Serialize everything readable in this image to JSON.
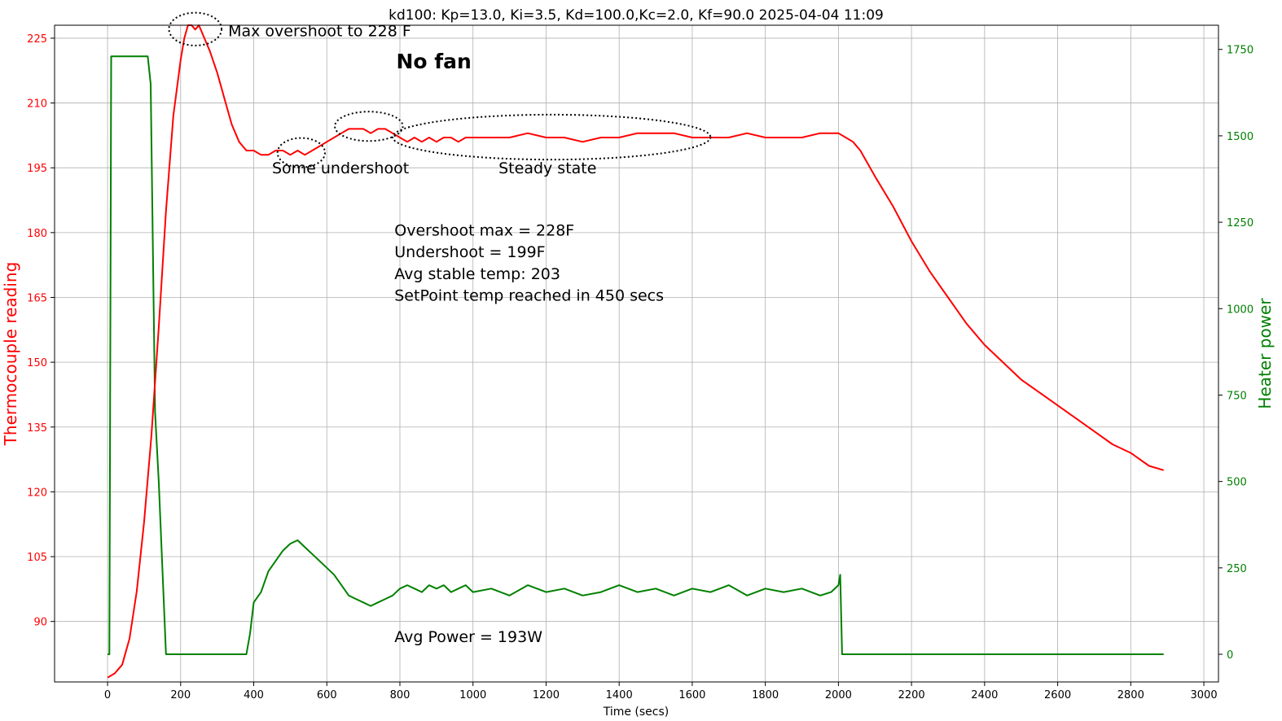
{
  "chart_data": {
    "type": "line",
    "title": "kd100: Kp=13.0, Ki=3.5, Kd=100.0,Kc=2.0, Kf=90.0  2025-04-04 11:09",
    "xlabel": "Time (secs)",
    "ylabel": "Thermocouple reading",
    "y2label": "Heater power",
    "xlim": [
      -145,
      3040
    ],
    "ylim": [
      76,
      228
    ],
    "y2lim": [
      -80,
      1820
    ],
    "xticks": [
      0,
      200,
      400,
      600,
      800,
      1000,
      1200,
      1400,
      1600,
      1800,
      2000,
      2200,
      2400,
      2600,
      2800,
      3000
    ],
    "yticks": [
      90,
      105,
      120,
      135,
      150,
      165,
      180,
      195,
      210,
      225
    ],
    "y2ticks": [
      0,
      250,
      500,
      750,
      1000,
      1250,
      1500,
      1750
    ],
    "grid": true,
    "colors": {
      "temperature": "#ff0000",
      "power": "#008000"
    },
    "series": [
      {
        "axis": "left",
        "x": [
          0,
          20,
          40,
          60,
          80,
          100,
          120,
          140,
          160,
          180,
          200,
          210,
          220,
          230,
          240,
          250,
          260,
          280,
          300,
          320,
          340,
          360,
          380,
          400,
          420,
          440,
          460,
          480,
          500,
          520,
          540,
          560,
          580,
          600,
          620,
          640,
          660,
          680,
          700,
          720,
          740,
          760,
          780,
          800,
          820,
          840,
          860,
          880,
          900,
          920,
          940,
          960,
          980,
          1000,
          1050,
          1100,
          1150,
          1200,
          1250,
          1300,
          1350,
          1400,
          1450,
          1500,
          1550,
          1600,
          1650,
          1700,
          1750,
          1800,
          1850,
          1900,
          1950,
          2000,
          2020,
          2040,
          2060,
          2080,
          2100,
          2150,
          2200,
          2250,
          2300,
          2350,
          2400,
          2450,
          2500,
          2550,
          2600,
          2650,
          2700,
          2750,
          2800,
          2850,
          2890
        ],
        "y": [
          77,
          78,
          80,
          86,
          97,
          113,
          133,
          158,
          185,
          207,
          220,
          225,
          228,
          228,
          227,
          228,
          226,
          222,
          217,
          211,
          205,
          201,
          199,
          199,
          198,
          198,
          199,
          199,
          198,
          199,
          198,
          199,
          200,
          201,
          202,
          203,
          204,
          204,
          204,
          203,
          204,
          204,
          203,
          202,
          201,
          202,
          201,
          202,
          201,
          202,
          202,
          201,
          202,
          202,
          202,
          202,
          203,
          202,
          202,
          201,
          202,
          202,
          203,
          203,
          203,
          202,
          202,
          202,
          203,
          202,
          202,
          202,
          203,
          203,
          202,
          201,
          199,
          196,
          193,
          186,
          178,
          171,
          165,
          159,
          154,
          150,
          146,
          143,
          140,
          137,
          134,
          131,
          129,
          126,
          125
        ]
      },
      {
        "axis": "right",
        "x": [
          0,
          5,
          10,
          110,
          118,
          130,
          140,
          160,
          162,
          380,
          390,
          400,
          420,
          440,
          460,
          480,
          500,
          520,
          540,
          560,
          580,
          600,
          620,
          640,
          660,
          680,
          700,
          720,
          740,
          760,
          780,
          800,
          820,
          840,
          860,
          880,
          900,
          920,
          940,
          960,
          980,
          1000,
          1050,
          1100,
          1150,
          1200,
          1250,
          1300,
          1350,
          1400,
          1450,
          1500,
          1550,
          1600,
          1650,
          1700,
          1750,
          1800,
          1850,
          1900,
          1950,
          1980,
          2000,
          2005,
          2010,
          2890
        ],
        "y": [
          0,
          0,
          1730,
          1730,
          1650,
          700,
          500,
          0,
          0,
          0,
          60,
          150,
          180,
          240,
          270,
          300,
          320,
          330,
          310,
          290,
          270,
          250,
          230,
          200,
          170,
          160,
          150,
          140,
          150,
          160,
          170,
          190,
          200,
          190,
          180,
          200,
          190,
          200,
          180,
          190,
          200,
          180,
          190,
          170,
          200,
          180,
          190,
          170,
          180,
          200,
          180,
          190,
          170,
          190,
          180,
          200,
          170,
          190,
          180,
          190,
          170,
          180,
          200,
          230,
          0,
          0
        ]
      }
    ],
    "annotations": [
      {
        "text": "Max overshoot to 228 F",
        "x": 330,
        "y": 225.5,
        "size": "normal"
      },
      {
        "text": "No fan",
        "x": 790,
        "y": 218,
        "size": "large"
      },
      {
        "text": "Some undershoot",
        "x": 450,
        "y": 193.7,
        "size": "normal"
      },
      {
        "text": "Steady state",
        "x": 1070,
        "y": 193.7,
        "size": "normal"
      },
      {
        "text": "Overshoot max = 228F",
        "x": 785,
        "y": 179.3,
        "size": "normal"
      },
      {
        "text": "Undershoot = 199F",
        "x": 785,
        "y": 174.3,
        "size": "normal"
      },
      {
        "text": "Avg stable temp: 203",
        "x": 785,
        "y": 169.2,
        "size": "normal"
      },
      {
        "text": "SetPoint temp reached in 450 secs",
        "x": 785,
        "y": 164.2,
        "size": "normal"
      },
      {
        "text": "Avg Power = 193W",
        "x": 785,
        "y": 85.2,
        "size": "normal"
      }
    ],
    "highlight_ellipses": [
      {
        "cx": 240,
        "cy": 227.1,
        "rx": 72,
        "ry": 3.8
      },
      {
        "cx": 530,
        "cy": 198.5,
        "rx": 65,
        "ry": 3.4
      },
      {
        "cx": 715,
        "cy": 204.6,
        "rx": 93,
        "ry": 3.4
      },
      {
        "cx": 1215,
        "cy": 202.1,
        "rx": 435,
        "ry": 5.2
      }
    ]
  }
}
